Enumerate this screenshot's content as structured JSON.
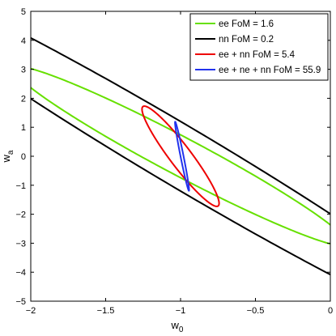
{
  "chart_data": {
    "type": "contour",
    "xlabel": "w",
    "xlabel_sub": "0",
    "ylabel": "w",
    "ylabel_sub": "a",
    "xlim": [
      -2,
      0
    ],
    "ylim": [
      -5,
      5
    ],
    "xticks": [
      -2,
      -1.5,
      -1,
      -0.5,
      0
    ],
    "xtick_labels": [
      "−2",
      "−1.5",
      "−1",
      "−0.5",
      "0"
    ],
    "yticks": [
      -5,
      -4,
      -3,
      -2,
      -1,
      0,
      1,
      2,
      3,
      4,
      5
    ],
    "ytick_labels": [
      "−5",
      "−4",
      "−3",
      "−2",
      "−1",
      "0",
      "1",
      "2",
      "3",
      "4",
      "5"
    ],
    "grid": false,
    "legend_position": "top-right",
    "series": [
      {
        "name": "ee FoM = 1.6",
        "color": "#66e000",
        "kind": "ellipse",
        "center": [
          -1.0,
          0.0
        ],
        "semi_major": 1.27,
        "semi_minor": 0.13,
        "tilt": -0.5
      },
      {
        "name": "nn FoM = 0.2",
        "color": "#000000",
        "kind": "ellipse",
        "center": [
          -1.0,
          0.0
        ],
        "semi_major": 2.4,
        "semi_minor": 0.205,
        "tilt": -0.55
      },
      {
        "name": "ee + nn FoM = 5.4",
        "color": "#ee0000",
        "kind": "ellipse",
        "center": [
          -1.0,
          0.0
        ],
        "semi_major": 0.425,
        "semi_minor": 0.072,
        "tilt": -0.94
      },
      {
        "name": "ee + ne + nn FoM = 55.9",
        "color": "#2233ee",
        "kind": "ellipse",
        "center": [
          -0.99,
          0.0
        ],
        "semi_major": 0.243,
        "semi_minor": 0.01,
        "tilt": -1.38
      }
    ]
  }
}
